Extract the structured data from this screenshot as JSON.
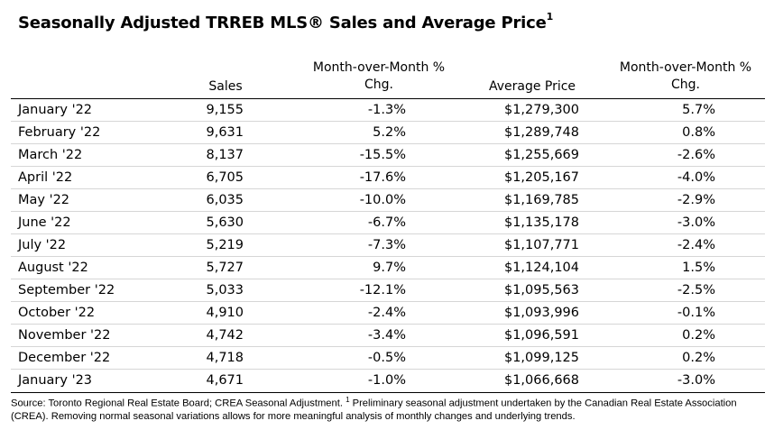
{
  "title": {
    "text": "Seasonally Adjusted TRREB MLS® Sales and Average Price",
    "footnote_mark": "1"
  },
  "table": {
    "headers": {
      "sales": "Sales",
      "sales_mom_line1": "Month-over-Month %",
      "sales_mom_line2": "Chg.",
      "price": "Average Price",
      "price_mom_line1": "Month-over-Month %",
      "price_mom_line2": "Chg."
    },
    "rows": [
      {
        "month": "January '22",
        "sales": "9,155",
        "sales_chg": "-1.3%",
        "price": "$1,279,300",
        "price_chg": "5.7%"
      },
      {
        "month": "February '22",
        "sales": "9,631",
        "sales_chg": "5.2%",
        "price": "$1,289,748",
        "price_chg": "0.8%"
      },
      {
        "month": "March '22",
        "sales": "8,137",
        "sales_chg": "-15.5%",
        "price": "$1,255,669",
        "price_chg": "-2.6%"
      },
      {
        "month": "April '22",
        "sales": "6,705",
        "sales_chg": "-17.6%",
        "price": "$1,205,167",
        "price_chg": "-4.0%"
      },
      {
        "month": "May '22",
        "sales": "6,035",
        "sales_chg": "-10.0%",
        "price": "$1,169,785",
        "price_chg": "-2.9%"
      },
      {
        "month": "June '22",
        "sales": "5,630",
        "sales_chg": "-6.7%",
        "price": "$1,135,178",
        "price_chg": "-3.0%"
      },
      {
        "month": "July '22",
        "sales": "5,219",
        "sales_chg": "-7.3%",
        "price": "$1,107,771",
        "price_chg": "-2.4%"
      },
      {
        "month": "August '22",
        "sales": "5,727",
        "sales_chg": "9.7%",
        "price": "$1,124,104",
        "price_chg": "1.5%"
      },
      {
        "month": "September '22",
        "sales": "5,033",
        "sales_chg": "-12.1%",
        "price": "$1,095,563",
        "price_chg": "-2.5%"
      },
      {
        "month": "October '22",
        "sales": "4,910",
        "sales_chg": "-2.4%",
        "price": "$1,093,996",
        "price_chg": "-0.1%"
      },
      {
        "month": "November '22",
        "sales": "4,742",
        "sales_chg": "-3.4%",
        "price": "$1,096,591",
        "price_chg": "0.2%"
      },
      {
        "month": "December '22",
        "sales": "4,718",
        "sales_chg": "-0.5%",
        "price": "$1,099,125",
        "price_chg": "0.2%"
      },
      {
        "month": "January '23",
        "sales": "4,671",
        "sales_chg": "-1.0%",
        "price": "$1,066,668",
        "price_chg": "-3.0%"
      }
    ]
  },
  "source": {
    "part1": "Source: Toronto Regional Real Estate Board; CREA Seasonal Adjustment. ",
    "footnote_mark": "1",
    "part2": " Preliminary seasonal adjustment undertaken by the Canadian Real Estate Association (CREA).  Removing normal seasonal variations allows for more meaningful analysis of monthly changes and underlying trends."
  }
}
